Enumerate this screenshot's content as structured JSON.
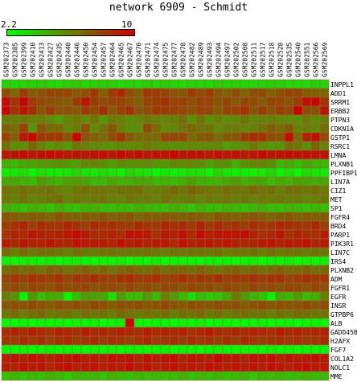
{
  "title": "network 6909 - Schmidt",
  "legend": {
    "min": "2.2",
    "max": "10",
    "low_color": "#00ff00",
    "high_color": "#cc0000"
  },
  "chart_data": {
    "type": "heatmap",
    "title": "network 6909 - Schmidt",
    "color_range": [
      2.2,
      10
    ],
    "columns": [
      "GSM202373",
      "GSM202385",
      "GSM202399",
      "GSM202410",
      "GSM202413",
      "GSM202427",
      "GSM202435",
      "GSM202440",
      "GSM202446",
      "GSM202450",
      "GSM202454",
      "GSM202457",
      "GSM202464",
      "GSM202465",
      "GSM202467",
      "GSM202470",
      "GSM202471",
      "GSM202474",
      "GSM202475",
      "GSM202477",
      "GSM202478",
      "GSM202482",
      "GSM202489",
      "GSM202493",
      "GSM202494",
      "GSM202497",
      "GSM202502",
      "GSM202508",
      "GSM202511",
      "GSM202517",
      "GSM202518",
      "GSM202528",
      "GSM202535",
      "GSM202540",
      "GSM202551",
      "GSM202566",
      "GSM202569"
    ],
    "rows": [
      "INPPL1",
      "ADD1",
      "SRRM1",
      "ERBB2",
      "PTPN3",
      "CDKN1A",
      "GSTP1",
      "RSRC1",
      "LMNA",
      "PLXNB1",
      "PPFIBP1",
      "LIN7A",
      "CIZ1",
      "MET",
      "SP1",
      "FGFR4",
      "BRD4",
      "PARP1",
      "PIK3R1",
      "LIN7C",
      "IRS4",
      "PLXNB2",
      "ADM",
      "FGFR1",
      "EGFR",
      "INSR",
      "GTPBP6",
      "ALB",
      "GADD45B",
      "H2AFX",
      "FGF7",
      "COL1A2",
      "NOLC1",
      "MME"
    ],
    "values": [
      [
        3.5,
        3.3,
        3.4,
        3.6,
        3.7,
        3.5,
        3.3,
        3.6,
        3.8,
        3.4,
        3.5,
        3.7,
        3.6,
        3.3,
        3.5,
        3.4,
        3.6,
        3.5,
        3.7,
        3.4,
        3.3,
        3.6,
        3.5,
        3.4,
        3.8,
        3.5,
        3.6,
        3.4,
        3.3,
        3.5,
        3.7,
        3.6,
        3.4,
        3.5,
        3.3,
        3.6,
        3.5
      ],
      [
        7.6,
        6.8,
        8.2,
        7.1,
        7.5,
        7.9,
        7.8,
        7.9,
        7.2,
        7.5,
        8.3,
        7.0,
        8.2,
        8.8,
        7.6,
        7.1,
        8.3,
        8.1,
        7.9,
        7.4,
        7.3,
        8.3,
        7.6,
        8.2,
        7.3,
        6.9,
        7.6,
        6.9,
        7.6,
        7.7,
        7.0,
        7.6,
        7.9,
        7.9,
        7.1,
        7.0,
        6.8
      ],
      [
        9.6,
        8.4,
        9.9,
        8.2,
        7.7,
        7.5,
        7.3,
        7.2,
        8.1,
        9.3,
        8.2,
        7.6,
        7.8,
        8.0,
        7.5,
        7.0,
        7.9,
        8.1,
        8.5,
        7.9,
        8.0,
        7.5,
        8.0,
        7.9,
        7.4,
        8.0,
        7.2,
        7.8,
        7.6,
        7.1,
        7.9,
        7.8,
        7.4,
        8.1,
        9.6,
        9.8,
        8.4
      ],
      [
        9.8,
        8.4,
        9.3,
        8.6,
        7.4,
        8.1,
        7.4,
        7.5,
        7.2,
        8.1,
        7.7,
        8.6,
        7.2,
        8.0,
        8.5,
        7.3,
        7.6,
        8.3,
        8.1,
        8.0,
        7.8,
        7.5,
        8.0,
        7.8,
        7.2,
        7.9,
        8.0,
        8.5,
        7.4,
        8.1,
        7.4,
        8.2,
        7.7,
        9.9,
        7.6,
        7.5,
        9.4
      ],
      [
        6.0,
        6.0,
        6.2,
        5.9,
        6.1,
        5.7,
        5.1,
        5.9,
        6.2,
        5.6,
        6.4,
        5.3,
        6.2,
        6.1,
        5.5,
        5.9,
        6.3,
        6.0,
        5.8,
        6.0,
        6.5,
        5.5,
        6.4,
        5.5,
        6.0,
        5.6,
        5.8,
        6.3,
        5.8,
        6.0,
        6.0,
        5.8,
        5.7,
        5.5,
        6.2,
        5.7,
        6.0
      ],
      [
        6.9,
        6.6,
        8.0,
        5.4,
        7.4,
        6.6,
        6.7,
        5.8,
        6.2,
        7.5,
        5.6,
        6.4,
        7.3,
        6.1,
        5.5,
        5.5,
        7.7,
        6.7,
        5.7,
        5.9,
        6.4,
        6.8,
        6.3,
        6.5,
        5.7,
        6.1,
        6.2,
        5.9,
        6.1,
        6.5,
        7.1,
        6.6,
        7.2,
        5.9,
        6.1,
        5.8,
        6.6
      ],
      [
        7.9,
        7.0,
        9.2,
        9.8,
        8.3,
        8.3,
        8.3,
        7.4,
        9.8,
        7.4,
        7.0,
        6.7,
        7.6,
        8.4,
        7.2,
        6.7,
        6.7,
        6.7,
        7.7,
        7.7,
        7.8,
        6.7,
        7.2,
        7.4,
        6.6,
        7.2,
        7.3,
        8.1,
        8.7,
        8.4,
        7.6,
        7.4,
        9.5,
        6.7,
        9.0,
        9.5,
        7.7
      ],
      [
        6.5,
        5.5,
        5.6,
        6.8,
        5.9,
        5.3,
        5.8,
        5.3,
        6.3,
        6.1,
        5.8,
        5.6,
        5.4,
        5.8,
        5.7,
        5.8,
        6.2,
        5.8,
        5.6,
        5.5,
        5.5,
        5.8,
        5.7,
        5.7,
        5.8,
        5.1,
        5.4,
        5.6,
        6.2,
        5.6,
        5.3,
        5.4,
        6.6,
        6.3,
        5.5,
        6.9,
        5.9
      ],
      [
        9.3,
        9.3,
        9.6,
        9.2,
        9.5,
        9.8,
        9.5,
        9.3,
        9.4,
        9.2,
        9.5,
        9.6,
        9.3,
        9.7,
        9.3,
        9.6,
        9.2,
        9.5,
        9.4,
        9.8,
        9.3,
        9.6,
        9.4,
        9.2,
        9.5,
        9.3,
        9.6,
        9.2,
        9.4,
        9.7,
        9.3,
        9.5,
        9.6,
        9.4,
        9.5,
        9.3,
        9.4
      ],
      [
        4.6,
        4.3,
        4.7,
        5.0,
        5.2,
        5.3,
        5.4,
        5.2,
        5.1,
        5.8,
        5.8,
        5.6,
        5.0,
        5.7,
        5.4,
        5.5,
        5.6,
        5.3,
        5.2,
        5.8,
        5.7,
        5.8,
        5.5,
        5.1,
        5.5,
        5.6,
        4.6,
        5.6,
        5.8,
        5.9,
        5.5,
        4.4,
        4.8,
        4.2,
        4.9,
        4.5,
        4.3
      ],
      [
        2.6,
        2.9,
        3.1,
        2.4,
        3.0,
        2.8,
        2.7,
        2.9,
        3.5,
        3.1,
        2.8,
        3.2,
        3.0,
        2.6,
        3.4,
        3.1,
        2.9,
        2.4,
        2.8,
        2.6,
        2.7,
        3.1,
        3.0,
        2.5,
        3.4,
        2.9,
        2.6,
        2.7,
        2.6,
        2.8,
        3.3,
        2.5,
        3.0,
        2.4,
        3.2,
        2.9,
        2.7
      ],
      [
        4.8,
        4.8,
        4.5,
        4.2,
        5.2,
        4.8,
        4.4,
        5.0,
        5.2,
        4.9,
        4.2,
        4.3,
        4.9,
        4.5,
        4.6,
        4.9,
        4.8,
        4.3,
        4.4,
        4.2,
        4.5,
        5.1,
        4.4,
        4.4,
        4.4,
        4.8,
        5.2,
        4.6,
        4.9,
        4.9,
        4.1,
        4.8,
        4.5,
        5.1,
        4.8,
        4.7,
        4.9
      ],
      [
        6.4,
        6.2,
        6.5,
        6.4,
        6.3,
        6.5,
        6.1,
        5.8,
        6.2,
        6.5,
        6.4,
        6.3,
        6.2,
        6.5,
        6.4,
        6.6,
        6.1,
        6.0,
        6.2,
        6.8,
        6.3,
        6.9,
        6.5,
        6.4,
        6.2,
        6.6,
        6.4,
        6.3,
        6.8,
        6.3,
        6.5,
        6.0,
        6.5,
        6.5,
        6.3,
        6.6,
        6.2
      ],
      [
        6.2,
        5.9,
        6.4,
        5.8,
        6.1,
        6.3,
        6.5,
        5.9,
        6.2,
        6.0,
        6.2,
        6.4,
        6.1,
        5.8,
        6.3,
        6.0,
        6.2,
        5.9,
        6.4,
        6.1,
        6.0,
        6.3,
        5.8,
        6.2,
        6.1,
        6.4,
        6.0,
        6.3,
        5.9,
        6.2,
        6.1,
        6.4,
        6.0,
        6.2,
        5.8,
        6.1,
        6.3
      ],
      [
        4.6,
        4.2,
        3.9,
        4.5,
        4.3,
        4.0,
        4.6,
        4.1,
        3.9,
        4.4,
        4.5,
        4.2,
        4.0,
        4.3,
        4.1,
        4.6,
        4.4,
        4.2,
        4.0,
        4.5,
        4.3,
        3.8,
        4.4,
        4.1,
        4.0,
        4.5,
        4.2,
        3.9,
        4.3,
        4.6,
        4.1,
        4.0,
        4.4,
        4.2,
        3.9,
        4.3,
        4.1
      ],
      [
        7.3,
        7.1,
        6.9,
        7.2,
        7.0,
        6.8,
        7.4,
        7.1,
        6.9,
        7.2,
        7.0,
        7.3,
        6.9,
        7.1,
        7.4,
        6.8,
        7.2,
        7.0,
        7.3,
        7.1,
        6.9,
        7.2,
        7.0,
        6.8,
        7.3,
        7.1,
        6.9,
        7.2,
        7.4,
        7.0,
        6.8,
        7.1,
        7.3,
        6.9,
        7.2,
        7.0,
        7.1
      ],
      [
        8.1,
        8.5,
        8.9,
        8.0,
        8.7,
        8.4,
        8.3,
        8.9,
        8.5,
        8.0,
        8.8,
        8.4,
        8.6,
        8.3,
        8.1,
        8.7,
        8.4,
        8.2,
        8.8,
        8.5,
        8.6,
        8.2,
        8.9,
        8.1,
        8.7,
        8.2,
        8.6,
        8.1,
        8.7,
        8.2,
        8.3,
        8.8,
        8.6,
        8.4,
        8.3,
        8.8,
        8.0
      ],
      [
        8.4,
        9.0,
        8.7,
        9.3,
        9.0,
        8.8,
        8.9,
        9.4,
        9.6,
        9.2,
        8.6,
        8.7,
        9.0,
        8.5,
        9.5,
        9.3,
        9.3,
        8.4,
        9.2,
        9.0,
        9.5,
        8.6,
        9.6,
        9.0,
        9.3,
        9.4,
        9.4,
        9.6,
        9.0,
        8.5,
        8.8,
        9.3,
        8.4,
        9.0,
        8.6,
        8.5,
        9.2
      ],
      [
        9.1,
        8.8,
        9.3,
        8.9,
        9.0,
        9.4,
        8.9,
        8.8,
        9.5,
        9.2,
        9.3,
        9.1,
        8.8,
        9.6,
        9.0,
        9.4,
        8.9,
        9.2,
        9.3,
        8.7,
        9.6,
        8.9,
        9.1,
        9.3,
        8.9,
        9.5,
        9.0,
        8.8,
        8.9,
        9.2,
        9.4,
        9.0,
        9.3,
        9.1,
        9.5,
        8.9,
        9.2
      ],
      [
        6.6,
        6.1,
        6.8,
        6.2,
        6.6,
        6.5,
        6.3,
        6.1,
        6.6,
        6.2,
        6.1,
        6.4,
        6.5,
        6.4,
        6.3,
        6.2,
        6.6,
        6.2,
        6.1,
        6.5,
        6.3,
        6.6,
        6.4,
        6.2,
        6.6,
        6.1,
        6.4,
        6.3,
        6.5,
        6.1,
        6.6,
        6.2,
        6.4,
        6.3,
        6.1,
        6.5,
        6.2
      ],
      [
        2.4,
        2.3,
        2.5,
        2.6,
        2.4,
        2.7,
        2.3,
        2.5,
        2.6,
        2.4,
        2.3,
        2.5,
        2.4,
        2.6,
        2.3,
        2.5,
        2.4,
        2.7,
        2.3,
        2.6,
        2.4,
        2.5,
        2.3,
        2.6,
        2.4,
        2.5,
        2.3,
        2.4,
        2.6,
        2.3,
        2.5,
        2.4,
        2.7,
        2.3,
        2.5,
        2.4,
        2.6
      ],
      [
        6.5,
        7.0,
        6.6,
        6.8,
        6.4,
        7.1,
        6.9,
        6.5,
        6.7,
        7.0,
        6.6,
        6.9,
        6.4,
        6.8,
        7.1,
        6.7,
        6.5,
        7.0,
        6.6,
        6.8,
        6.9,
        6.5,
        7.1,
        6.7,
        6.4,
        6.8,
        7.0,
        6.6,
        6.9,
        6.5,
        6.8,
        7.0,
        6.6,
        6.7,
        6.9,
        6.5,
        6.8
      ],
      [
        7.9,
        8.4,
        8.0,
        8.6,
        8.3,
        8.0,
        8.5,
        7.8,
        8.4,
        8.2,
        8.6,
        8.1,
        7.9,
        8.4,
        8.7,
        8.0,
        8.3,
        8.6,
        7.9,
        8.2,
        8.5,
        8.0,
        8.4,
        8.1,
        8.6,
        7.9,
        8.3,
        8.2,
        8.5,
        8.0,
        8.4,
        8.6,
        7.8,
        8.2,
        8.5,
        8.1,
        8.3
      ],
      [
        7.5,
        7.8,
        7.3,
        7.9,
        7.6,
        7.4,
        8.0,
        7.5,
        7.7,
        7.9,
        7.3,
        7.6,
        7.8,
        7.4,
        7.9,
        7.5,
        7.7,
        7.3,
        7.8,
        7.6,
        7.4,
        7.9,
        7.5,
        7.7,
        7.3,
        7.8,
        7.6,
        7.4,
        7.9,
        7.5,
        7.7,
        7.3,
        7.8,
        7.6,
        7.4,
        7.9,
        7.5
      ],
      [
        6.0,
        5.5,
        2.5,
        5.4,
        4.1,
        4.8,
        4.7,
        2.5,
        4.2,
        5.3,
        5.0,
        4.9,
        3.1,
        5.3,
        4.2,
        4.2,
        5.2,
        4.2,
        6.1,
        5.3,
        4.3,
        3.2,
        4.2,
        3.8,
        4.0,
        4.8,
        6.2,
        5.2,
        4.4,
        4.0,
        2.5,
        4.7,
        4.4,
        5.3,
        4.2,
        4.7,
        6.0
      ],
      [
        7.3,
        7.6,
        7.4,
        7.8,
        7.5,
        7.2,
        7.7,
        7.4,
        7.6,
        7.3,
        7.8,
        7.5,
        7.1,
        7.6,
        7.4,
        7.7,
        7.3,
        7.5,
        7.8,
        7.4,
        7.2,
        7.6,
        7.5,
        7.3,
        7.7,
        7.4,
        7.6,
        7.2,
        7.5,
        7.8,
        7.3,
        7.6,
        7.4,
        7.5,
        7.7,
        7.3,
        7.6
      ],
      [
        6.3,
        6.7,
        6.1,
        6.5,
        6.8,
        6.2,
        6.4,
        6.6,
        6.0,
        6.7,
        6.3,
        6.5,
        6.1,
        6.8,
        6.4,
        6.2,
        6.6,
        6.3,
        6.7,
        6.0,
        6.5,
        6.4,
        6.8,
        6.2,
        6.6,
        6.1,
        6.5,
        6.7,
        6.3,
        6.4,
        6.0,
        6.6,
        6.2,
        6.8,
        6.5,
        6.3,
        6.4
      ],
      [
        2.4,
        2.3,
        2.5,
        2.3,
        2.4,
        2.5,
        2.4,
        2.3,
        2.6,
        2.4,
        2.5,
        2.3,
        2.4,
        2.6,
        9.8,
        2.4,
        2.3,
        2.5,
        2.4,
        2.3,
        2.5,
        2.4,
        2.6,
        2.3,
        2.4,
        2.5,
        2.3,
        2.4,
        2.5,
        2.6,
        2.3,
        2.4,
        2.5,
        2.3,
        2.4,
        2.5,
        2.3
      ],
      [
        8.6,
        8.9,
        8.5,
        9.1,
        8.7,
        8.4,
        9.0,
        8.8,
        8.5,
        9.2,
        8.7,
        8.9,
        8.6,
        9.0,
        8.8,
        8.5,
        9.1,
        8.7,
        8.9,
        8.6,
        9.0,
        8.4,
        8.8,
        9.1,
        8.7,
        8.5,
        8.9,
        8.6,
        9.0,
        8.8,
        8.5,
        9.2,
        8.7,
        8.9,
        8.6,
        8.8,
        9.0
      ],
      [
        8.4,
        8.1,
        8.7,
        8.3,
        8.6,
        8.0,
        8.5,
        8.8,
        8.2,
        8.4,
        8.7,
        8.1,
        8.6,
        8.3,
        8.0,
        8.5,
        8.8,
        8.2,
        8.4,
        8.6,
        8.1,
        8.7,
        8.3,
        8.5,
        8.0,
        8.6,
        8.2,
        8.8,
        8.4,
        8.1,
        8.5,
        8.7,
        8.3,
        8.6,
        8.2,
        8.4,
        8.7
      ],
      [
        2.4,
        2.3,
        2.5,
        2.3,
        2.4,
        2.6,
        2.3,
        2.5,
        2.4,
        2.3,
        2.5,
        2.4,
        2.6,
        2.3,
        2.4,
        2.5,
        2.3,
        2.4,
        2.6,
        2.3,
        2.5,
        2.4,
        2.3,
        2.5,
        2.6,
        2.4,
        2.3,
        2.5,
        2.4,
        2.3,
        2.6,
        2.4,
        2.5,
        2.3,
        2.4,
        2.5,
        2.4
      ],
      [
        9.0,
        9.4,
        8.9,
        9.6,
        9.2,
        8.8,
        9.5,
        9.1,
        9.7,
        9.0,
        9.3,
        8.9,
        9.6,
        9.2,
        9.4,
        8.8,
        9.5,
        9.1,
        9.3,
        9.6,
        8.9,
        9.4,
        9.2,
        9.0,
        9.7,
        9.1,
        9.3,
        8.9,
        9.5,
        9.2,
        9.6,
        9.0,
        9.4,
        9.1,
        9.3,
        9.5,
        9.2
      ],
      [
        9.2,
        8.9,
        9.5,
        9.1,
        9.4,
        8.8,
        9.3,
        9.6,
        9.0,
        9.2,
        9.5,
        8.9,
        9.3,
        9.1,
        9.6,
        9.0,
        9.4,
        8.8,
        9.2,
        9.5,
        9.1,
        9.3,
        8.9,
        9.6,
        9.2,
        9.0,
        9.4,
        9.1,
        9.3,
        8.9,
        9.5,
        9.2,
        9.0,
        9.4,
        9.6,
        9.1,
        9.3
      ],
      [
        4.1,
        4.4,
        3.9,
        4.3,
        4.0,
        4.5,
        4.2,
        3.8,
        4.4,
        4.1,
        4.3,
        4.0,
        4.5,
        4.2,
        3.9,
        4.4,
        4.1,
        4.3,
        4.0,
        4.2,
        4.5,
        3.9,
        4.3,
        4.1,
        4.4,
        4.0,
        4.2,
        4.5,
        3.8,
        4.3,
        4.1,
        4.4,
        4.0,
        4.2,
        4.5,
        4.1,
        4.3
      ]
    ]
  }
}
